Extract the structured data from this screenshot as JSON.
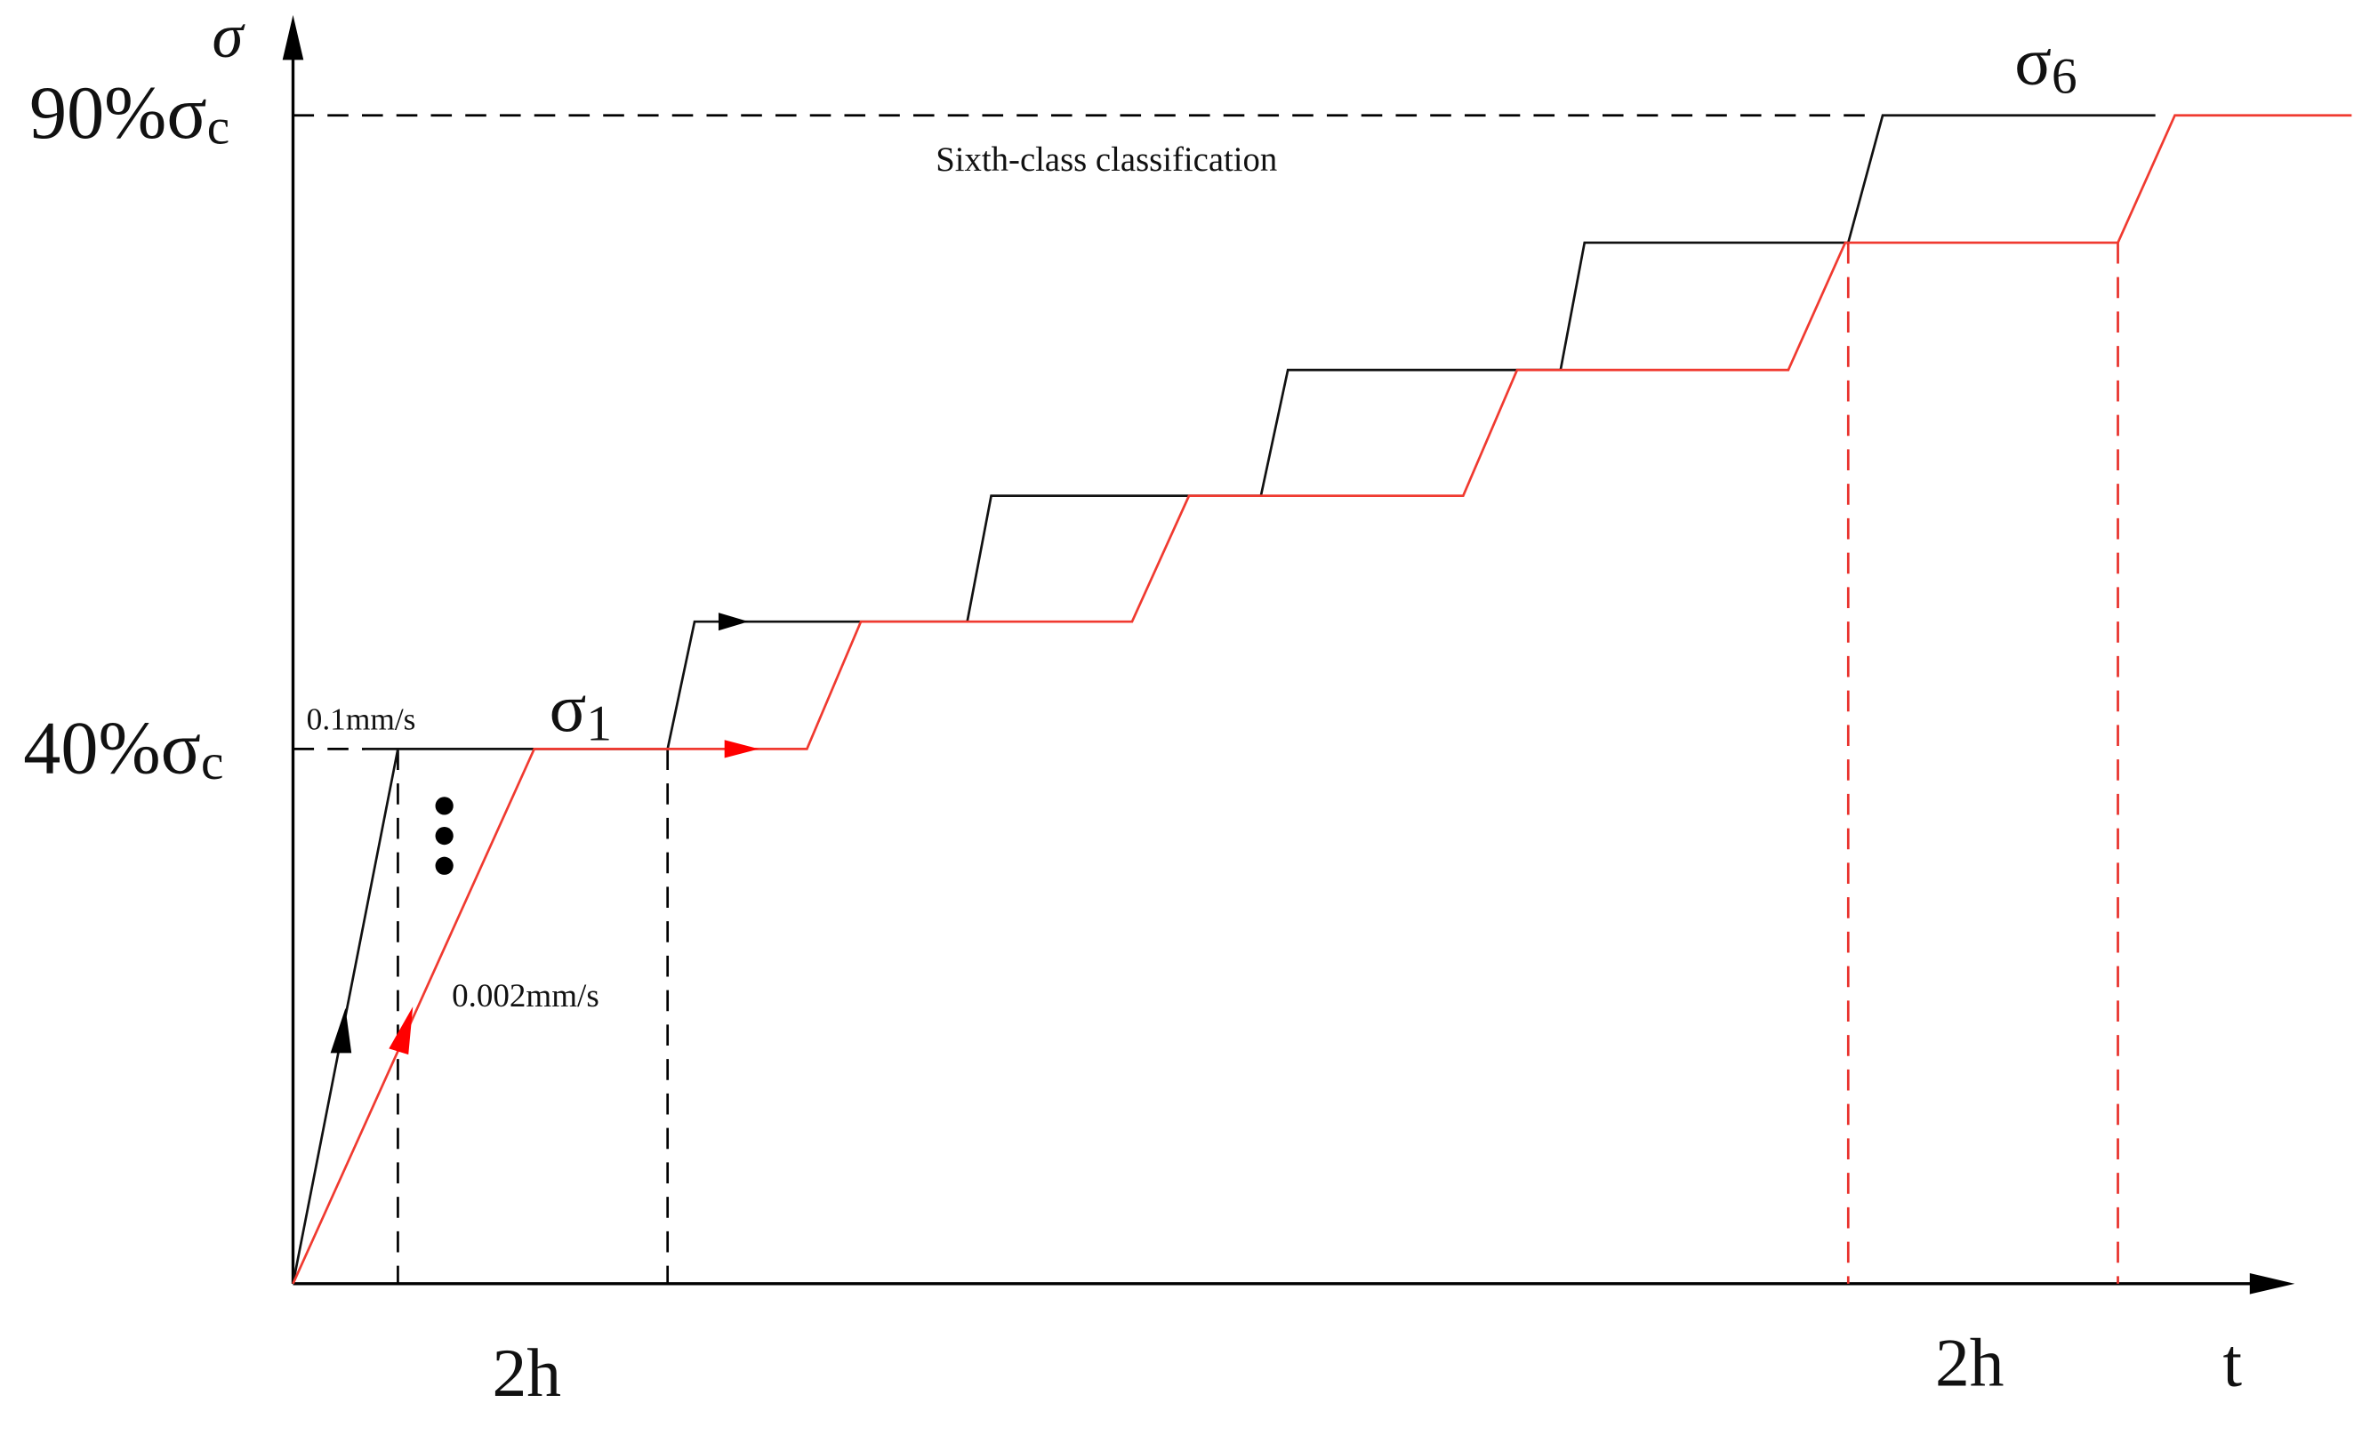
{
  "axes": {
    "y_label": "σ",
    "x_label": "t"
  },
  "levels": [
    {
      "main": "90%σ",
      "sub": "c"
    },
    {
      "main": "40%σ",
      "sub": "c"
    }
  ],
  "stress_labels": [
    {
      "main": "σ",
      "sub": "1"
    },
    {
      "main": "σ",
      "sub": "6"
    }
  ],
  "annotations": {
    "classification": "Sixth-class classification",
    "fast_rate": "0.1mm/s",
    "slow_rate": "0.002mm/s"
  },
  "durations": [
    "2h",
    "2h"
  ]
}
